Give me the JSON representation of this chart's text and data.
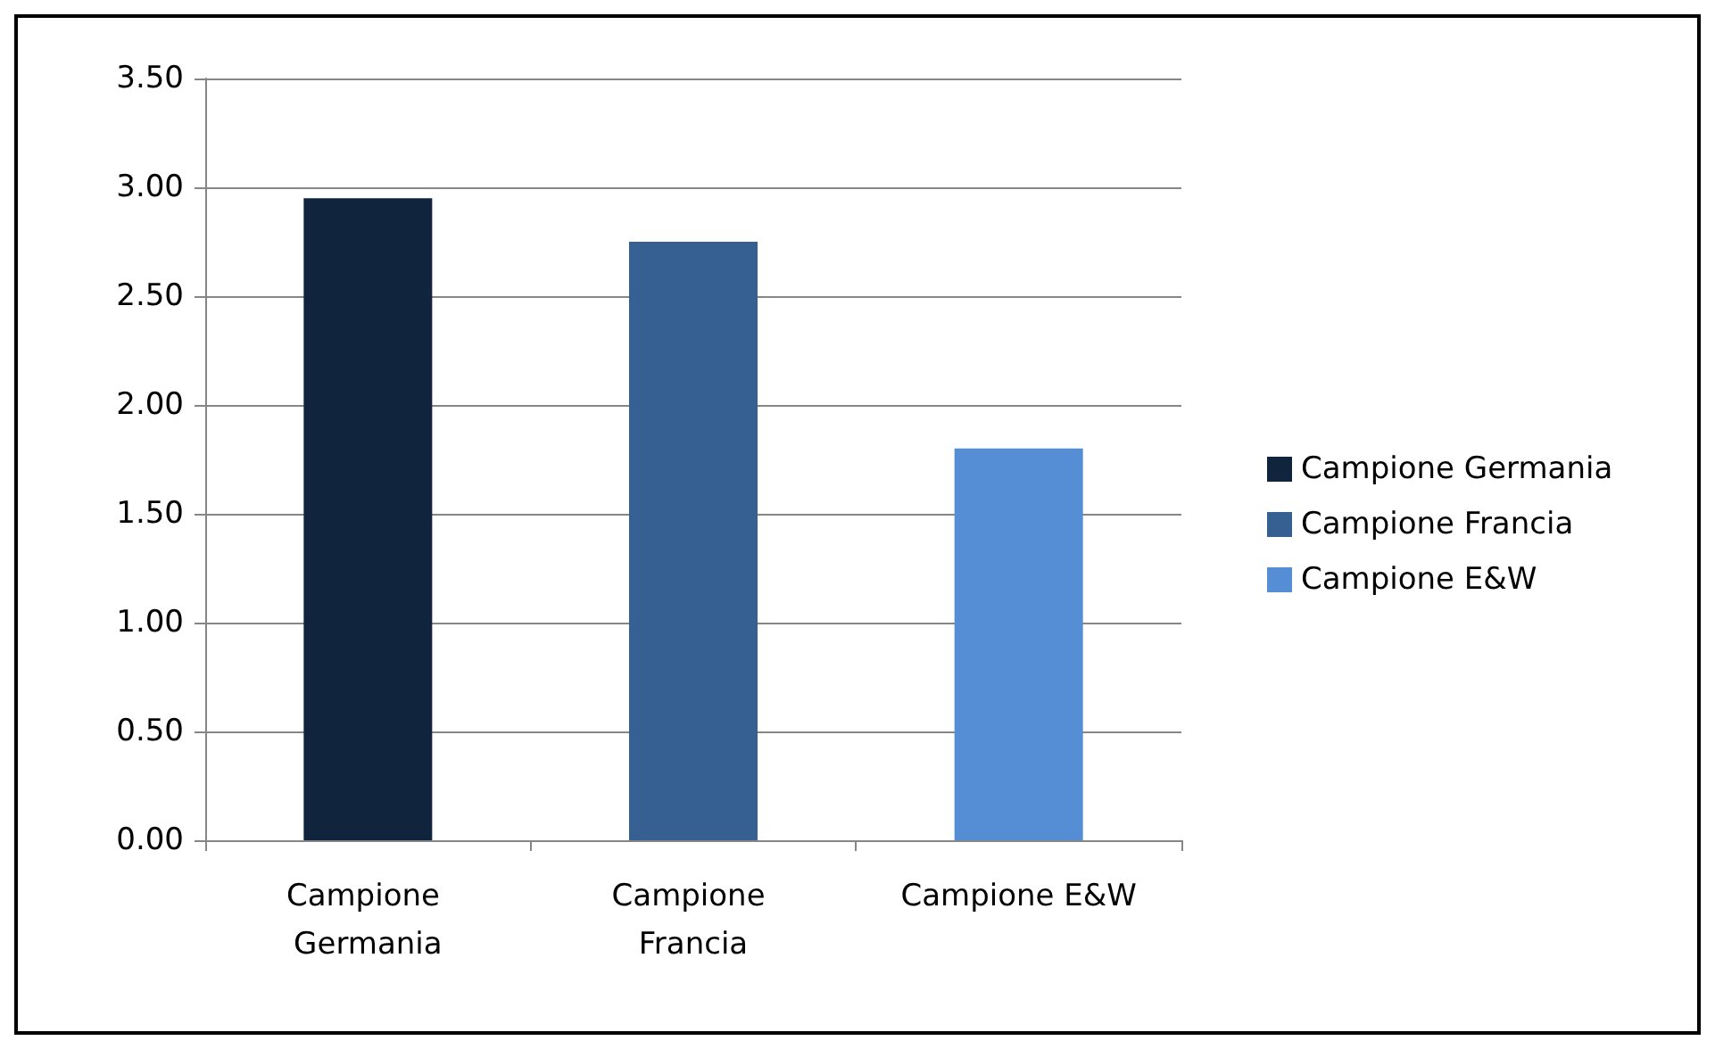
{
  "chart_data": {
    "type": "bar",
    "categories": [
      "Campione Germania",
      "Campione Francia",
      "Campione E&W"
    ],
    "series": [
      {
        "name": "Campione Germania",
        "color": "#10243e",
        "values": [
          2.95,
          null,
          null
        ]
      },
      {
        "name": "Campione Francia",
        "color": "#376092",
        "values": [
          null,
          2.75,
          null
        ]
      },
      {
        "name": "Campione E&W",
        "color": "#558ed5",
        "values": [
          null,
          null,
          1.8
        ]
      }
    ],
    "ylim": [
      0,
      3.5
    ],
    "yticks": [
      {
        "value": 0,
        "label": "0.00"
      },
      {
        "value": 0.5,
        "label": "0.50"
      },
      {
        "value": 1,
        "label": "1.00"
      },
      {
        "value": 1.5,
        "label": "1.50"
      },
      {
        "value": 2,
        "label": "2.00"
      },
      {
        "value": 2.5,
        "label": "2.50"
      },
      {
        "value": 3,
        "label": "3.00"
      },
      {
        "value": 3.5,
        "label": "3.50"
      }
    ],
    "grid": "y",
    "legend": "right"
  }
}
